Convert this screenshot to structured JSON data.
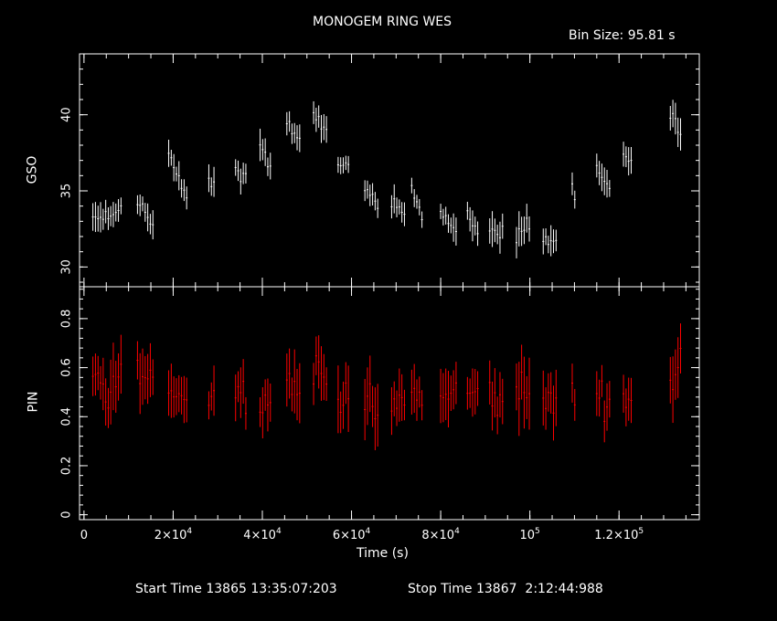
{
  "chart_data": {
    "type": "scatter",
    "title": "MONOGEM RING WES",
    "bin_size_text": "Bin Size: 95.81 s",
    "xlabel": "Time (s)",
    "x_ticks": [
      {
        "value": 0,
        "label": "0"
      },
      {
        "value": 20000,
        "label": "2×10",
        "exp": "4"
      },
      {
        "value": 40000,
        "label": "4×10",
        "exp": "4"
      },
      {
        "value": 60000,
        "label": "6×10",
        "exp": "4"
      },
      {
        "value": 80000,
        "label": "8×10",
        "exp": "4"
      },
      {
        "value": 100000,
        "label": "10",
        "exp": "5"
      },
      {
        "value": 120000,
        "label": "1.2×10",
        "exp": "5"
      }
    ],
    "xlim": [
      -1000,
      138000
    ],
    "panels": [
      {
        "name": "GSO",
        "ylabel": "GSO",
        "color": "#ffffff",
        "ylim": [
          28.7,
          44.0
        ],
        "y_ticks": [
          30,
          35,
          40
        ],
        "segments": [
          {
            "t0": 2000,
            "t1": 6000,
            "y0": 33.0,
            "y1": 33.5,
            "err": 0.9
          },
          {
            "t0": 6000,
            "t1": 8500,
            "y0": 33.0,
            "y1": 34.0,
            "err": 0.9
          },
          {
            "t0": 12000,
            "t1": 15500,
            "y0": 34.5,
            "y1": 32.5,
            "err": 0.8
          },
          {
            "t0": 19000,
            "t1": 23500,
            "y0": 37.5,
            "y1": 34.0,
            "err": 0.8
          },
          {
            "t0": 28000,
            "t1": 29500,
            "y0": 36.0,
            "y1": 35.0,
            "err": 0.9
          },
          {
            "t0": 34000,
            "t1": 36500,
            "y0": 36.5,
            "y1": 36.0,
            "err": 0.8
          },
          {
            "t0": 39500,
            "t1": 42000,
            "y0": 38.0,
            "y1": 36.5,
            "err": 0.9
          },
          {
            "t0": 45500,
            "t1": 48500,
            "y0": 39.5,
            "y1": 38.0,
            "err": 0.8
          },
          {
            "t0": 51500,
            "t1": 54500,
            "y0": 40.0,
            "y1": 38.8,
            "err": 0.8
          },
          {
            "t0": 57000,
            "t1": 59500,
            "y0": 37.0,
            "y1": 36.5,
            "err": 0.7
          },
          {
            "t0": 63000,
            "t1": 66000,
            "y0": 35.0,
            "y1": 34.0,
            "err": 0.8
          },
          {
            "t0": 69000,
            "t1": 72000,
            "y0": 34.0,
            "y1": 33.5,
            "err": 0.8
          },
          {
            "t0": 73500,
            "t1": 76000,
            "y0": 35.0,
            "y1": 33.5,
            "err": 0.7
          },
          {
            "t0": 80000,
            "t1": 84000,
            "y0": 33.5,
            "y1": 32.5,
            "err": 0.8
          },
          {
            "t0": 86000,
            "t1": 88500,
            "y0": 33.5,
            "y1": 32.0,
            "err": 0.9
          },
          {
            "t0": 91000,
            "t1": 94000,
            "y0": 32.0,
            "y1": 32.5,
            "err": 1.0
          },
          {
            "t0": 97000,
            "t1": 100000,
            "y0": 32.0,
            "y1": 33.0,
            "err": 1.0
          },
          {
            "t0": 103000,
            "t1": 106000,
            "y0": 32.0,
            "y1": 31.5,
            "err": 0.9
          },
          {
            "t0": 109500,
            "t1": 110500,
            "y0": 35.5,
            "y1": 34.0,
            "err": 0.8
          },
          {
            "t0": 115000,
            "t1": 118000,
            "y0": 36.5,
            "y1": 35.0,
            "err": 0.8
          },
          {
            "t0": 121000,
            "t1": 123000,
            "y0": 37.5,
            "y1": 37.0,
            "err": 0.8
          },
          {
            "t0": 131500,
            "t1": 134000,
            "y0": 40.0,
            "y1": 38.5,
            "err": 0.9
          }
        ]
      },
      {
        "name": "PIN",
        "ylabel": "PIN",
        "color": "#ff0000",
        "ylim": [
          -0.02,
          0.93
        ],
        "y_ticks": [
          0,
          0.2,
          0.4,
          0.6,
          0.8
        ],
        "segments": [
          {
            "t0": 2000,
            "t1": 6000,
            "y0": 0.55,
            "y1": 0.45,
            "err": 0.1
          },
          {
            "t0": 6000,
            "t1": 8500,
            "y0": 0.52,
            "y1": 0.55,
            "err": 0.13
          },
          {
            "t0": 12000,
            "t1": 15500,
            "y0": 0.6,
            "y1": 0.48,
            "err": 0.12
          },
          {
            "t0": 19000,
            "t1": 23500,
            "y0": 0.55,
            "y1": 0.45,
            "err": 0.1
          },
          {
            "t0": 28000,
            "t1": 29500,
            "y0": 0.48,
            "y1": 0.5,
            "err": 0.09
          },
          {
            "t0": 34000,
            "t1": 36500,
            "y0": 0.52,
            "y1": 0.48,
            "err": 0.1
          },
          {
            "t0": 39500,
            "t1": 42000,
            "y0": 0.45,
            "y1": 0.5,
            "err": 0.1
          },
          {
            "t0": 45500,
            "t1": 48500,
            "y0": 0.55,
            "y1": 0.5,
            "err": 0.11
          },
          {
            "t0": 51500,
            "t1": 54500,
            "y0": 0.6,
            "y1": 0.55,
            "err": 0.11
          },
          {
            "t0": 57000,
            "t1": 59500,
            "y0": 0.45,
            "y1": 0.55,
            "err": 0.12
          },
          {
            "t0": 63000,
            "t1": 66000,
            "y0": 0.48,
            "y1": 0.4,
            "err": 0.11
          },
          {
            "t0": 69000,
            "t1": 72000,
            "y0": 0.42,
            "y1": 0.48,
            "err": 0.1
          },
          {
            "t0": 73500,
            "t1": 76000,
            "y0": 0.5,
            "y1": 0.45,
            "err": 0.1
          },
          {
            "t0": 80000,
            "t1": 84000,
            "y0": 0.48,
            "y1": 0.5,
            "err": 0.1
          },
          {
            "t0": 86000,
            "t1": 88500,
            "y0": 0.5,
            "y1": 0.48,
            "err": 0.1
          },
          {
            "t0": 91000,
            "t1": 94000,
            "y0": 0.5,
            "y1": 0.45,
            "err": 0.12
          },
          {
            "t0": 97000,
            "t1": 100000,
            "y0": 0.52,
            "y1": 0.48,
            "err": 0.13
          },
          {
            "t0": 103000,
            "t1": 106000,
            "y0": 0.48,
            "y1": 0.45,
            "err": 0.1
          },
          {
            "t0": 109500,
            "t1": 110500,
            "y0": 0.5,
            "y1": 0.45,
            "err": 0.1
          },
          {
            "t0": 115000,
            "t1": 118000,
            "y0": 0.5,
            "y1": 0.45,
            "err": 0.1
          },
          {
            "t0": 121000,
            "t1": 123000,
            "y0": 0.45,
            "y1": 0.5,
            "err": 0.1
          },
          {
            "t0": 131500,
            "t1": 134000,
            "y0": 0.52,
            "y1": 0.65,
            "err": 0.12
          }
        ]
      }
    ],
    "footer": {
      "start_time": "Start Time 13865 13:35:07:203",
      "stop_time": "Stop Time 13867  2:12:44:988"
    }
  }
}
